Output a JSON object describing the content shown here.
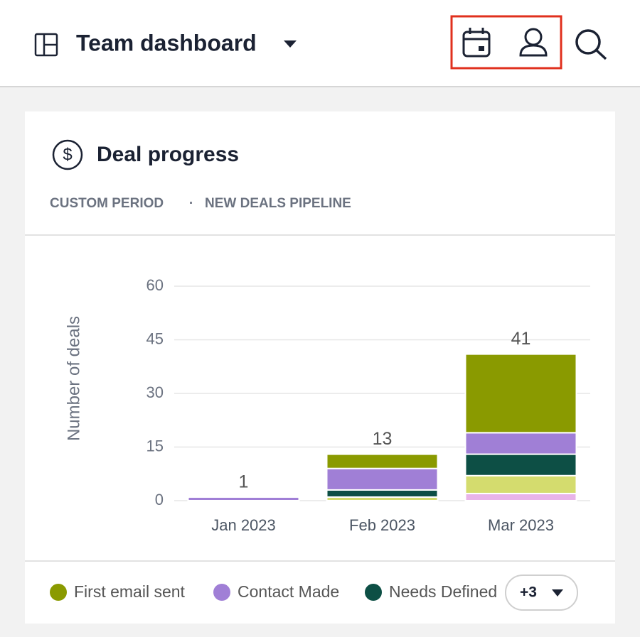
{
  "header": {
    "title": "Team dashboard"
  },
  "card": {
    "title": "Deal progress",
    "subtitle": [
      "CUSTOM PERIOD",
      "NEW DEALS PIPELINE"
    ],
    "separator": "·",
    "more_button": "+3"
  },
  "chart_data": {
    "type": "stacked_bar",
    "ylabel": "Number of deals",
    "categories": [
      "Jan 2023",
      "Feb 2023",
      "Mar 2023"
    ],
    "ylim": [
      0,
      60
    ],
    "yticks": [
      0,
      15,
      30,
      45,
      60
    ],
    "grid": true,
    "totals": [
      1,
      13,
      41
    ],
    "series": [
      {
        "name": "First email sent",
        "color": "#8a9a00",
        "values": [
          0,
          4,
          22
        ]
      },
      {
        "name": "Contact Made",
        "color": "#a07fd6",
        "values": [
          1,
          6,
          6
        ]
      },
      {
        "name": "Needs Defined",
        "color": "#0d4f45",
        "values": [
          0,
          2,
          6
        ]
      },
      {
        "color": "#d4dc6e",
        "values": [
          0,
          1,
          5
        ]
      },
      {
        "color": "#e8b4e8",
        "values": [
          0,
          0,
          2
        ]
      }
    ]
  }
}
